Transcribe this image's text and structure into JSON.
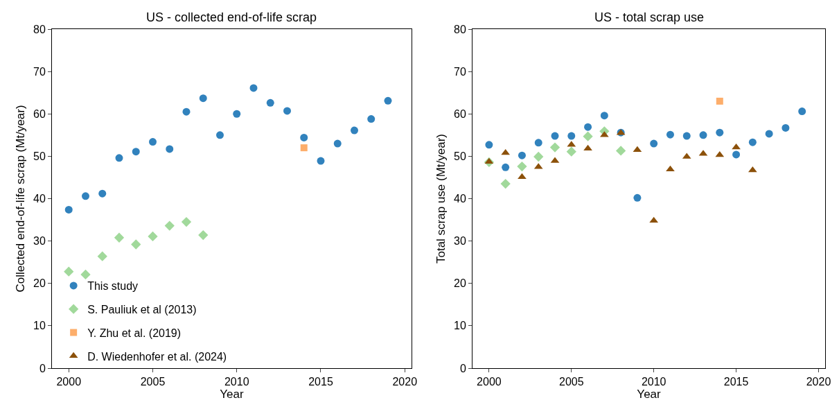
{
  "chart_data": [
    {
      "type": "scatter",
      "title": "US - collected end-of-life scrap",
      "xlabel": "Year",
      "ylabel": "Collected end-of-life scrap (Mt/year)",
      "xlim": [
        1999,
        2020.4
      ],
      "xticks": [
        2000,
        2005,
        2010,
        2015,
        2020
      ],
      "ylim": [
        0,
        80
      ],
      "yticks": [
        0,
        10,
        20,
        30,
        40,
        50,
        60,
        70,
        80
      ],
      "legend": "bottom left",
      "series": [
        {
          "name": "This study",
          "color": "#3182bd",
          "marker": "circle",
          "x": [
            2000,
            2001,
            2002,
            2003,
            2004,
            2005,
            2006,
            2007,
            2008,
            2009,
            2010,
            2011,
            2012,
            2013,
            2014,
            2015,
            2016,
            2017,
            2018,
            2019
          ],
          "values": [
            37.4,
            40.6,
            41.2,
            49.6,
            51.1,
            53.4,
            51.7,
            60.5,
            63.7,
            55.0,
            60.0,
            66.1,
            62.6,
            60.7,
            54.4,
            48.9,
            53.0,
            56.1,
            58.8,
            63.1
          ]
        },
        {
          "name": "S. Pauliuk et al (2013)",
          "color": "#a1d99b",
          "marker": "diamond",
          "x": [
            2000,
            2001,
            2002,
            2003,
            2004,
            2005,
            2006,
            2007,
            2008
          ],
          "values": [
            22.8,
            22.1,
            26.4,
            30.8,
            29.2,
            31.1,
            33.6,
            34.5,
            31.4
          ]
        },
        {
          "name": "Y. Zhu et al. (2019)",
          "color": "#fdae6b",
          "marker": "square",
          "x": [
            2014
          ],
          "values": [
            52.0
          ]
        }
      ]
    },
    {
      "type": "scatter",
      "title": "US - total scrap use",
      "xlabel": "Year",
      "ylabel": "Total scrap use (Mt/year)",
      "xlim": [
        1999,
        2020.4
      ],
      "xticks": [
        2000,
        2005,
        2010,
        2015,
        2020
      ],
      "ylim": [
        0,
        80
      ],
      "yticks": [
        0,
        10,
        20,
        30,
        40,
        50,
        60,
        70,
        80
      ],
      "series": [
        {
          "name": "This study",
          "color": "#3182bd",
          "marker": "circle",
          "x": [
            2000,
            2001,
            2002,
            2003,
            2004,
            2005,
            2006,
            2007,
            2008,
            2009,
            2010,
            2011,
            2012,
            2013,
            2014,
            2015,
            2016,
            2017,
            2018,
            2019
          ],
          "values": [
            52.7,
            47.4,
            50.2,
            53.2,
            54.8,
            54.8,
            56.9,
            59.6,
            55.6,
            40.2,
            53.0,
            55.1,
            54.8,
            55.0,
            55.6,
            50.4,
            53.3,
            55.3,
            56.7,
            60.6
          ]
        },
        {
          "name": "S. Pauliuk et al (2013)",
          "color": "#a1d99b",
          "marker": "diamond",
          "x": [
            2000,
            2001,
            2002,
            2003,
            2004,
            2005,
            2006,
            2007,
            2008
          ],
          "values": [
            48.6,
            43.5,
            47.6,
            49.9,
            52.1,
            51.1,
            54.7,
            55.9,
            51.3
          ]
        },
        {
          "name": "Y. Zhu et al. (2019)",
          "color": "#fdae6b",
          "marker": "square",
          "x": [
            2014
          ],
          "values": [
            63.0
          ]
        },
        {
          "name": "D. Wiedenhofer et al. (2024)",
          "color": "#8c510a",
          "marker": "triangle",
          "x": [
            2000,
            2001,
            2002,
            2003,
            2004,
            2005,
            2006,
            2007,
            2008,
            2009,
            2010,
            2011,
            2012,
            2013,
            2014,
            2015,
            2016
          ],
          "values": [
            48.7,
            50.8,
            45.1,
            47.5,
            48.9,
            52.7,
            51.8,
            55.0,
            55.5,
            51.5,
            34.8,
            46.9,
            49.9,
            50.6,
            50.3,
            52.1,
            46.7
          ]
        }
      ]
    }
  ]
}
